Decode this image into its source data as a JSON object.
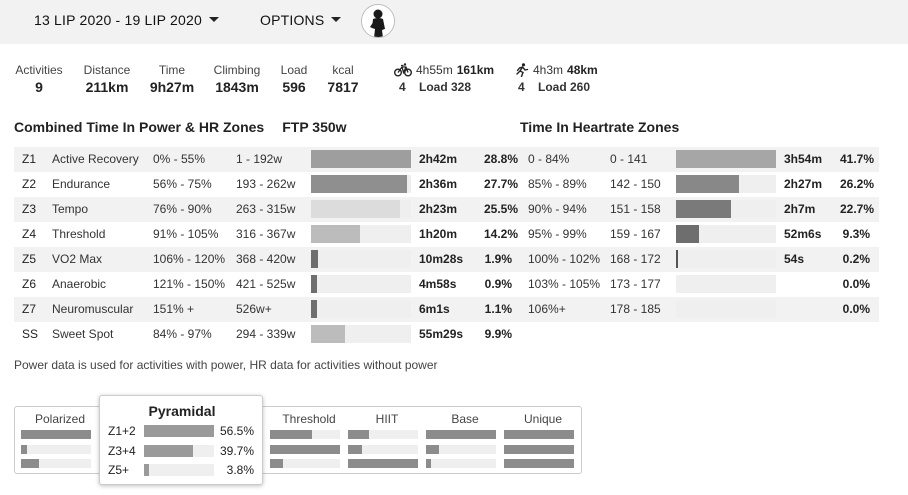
{
  "header": {
    "date_range": "13 LIP 2020 - 19 LIP 2020",
    "options": "OPTIONS",
    "avatar_icon": "athlete-avatar"
  },
  "stats": [
    {
      "label": "Activities",
      "value": "9"
    },
    {
      "label": "Distance",
      "value": "211km"
    },
    {
      "label": "Time",
      "value": "9h27m"
    },
    {
      "label": "Climbing",
      "value": "1843m"
    },
    {
      "label": "Load",
      "value": "596"
    },
    {
      "label": "kcal",
      "value": "7817"
    }
  ],
  "sports": [
    {
      "icon": "bike-icon",
      "duration": "4h55m",
      "distance": "161km",
      "count": "4",
      "load": "Load 328"
    },
    {
      "icon": "run-icon",
      "duration": "4h3m",
      "distance": "48km",
      "count": "4",
      "load": "Load 260"
    }
  ],
  "power_section": {
    "title": "Combined Time In Power & HR Zones",
    "ftp": "FTP 350w"
  },
  "hr_section": {
    "title": "Time In Heartrate Zones"
  },
  "zones": [
    {
      "id": "Z1",
      "name": "Active Recovery",
      "pct": "0% - 55%",
      "watts": "1 - 192w",
      "time": "2h42m",
      "perc": "28.8%",
      "fill": 1.0,
      "color": "#9e9e9e",
      "hr_pct": "0 - 84%",
      "hr_bpm": "0 - 141",
      "hr_time": "3h54m",
      "hr_perc": "41.7%",
      "hr_fill": 1.0,
      "hr_color": "#a6a6a6"
    },
    {
      "id": "Z2",
      "name": "Endurance",
      "pct": "56% - 75%",
      "watts": "193 - 262w",
      "time": "2h36m",
      "perc": "27.7%",
      "fill": 0.96,
      "color": "#8f8f8f",
      "hr_pct": "85% - 89%",
      "hr_bpm": "142 - 150",
      "hr_time": "2h27m",
      "hr_perc": "26.2%",
      "hr_fill": 0.63,
      "hr_color": "#888888"
    },
    {
      "id": "Z3",
      "name": "Tempo",
      "pct": "76% - 90%",
      "watts": "263 - 315w",
      "time": "2h23m",
      "perc": "25.5%",
      "fill": 0.89,
      "color": "#dcdcdc",
      "hr_pct": "90% - 94%",
      "hr_bpm": "151 - 158",
      "hr_time": "2h7m",
      "hr_perc": "22.7%",
      "hr_fill": 0.55,
      "hr_color": "#7a7a7a"
    },
    {
      "id": "Z4",
      "name": "Threshold",
      "pct": "91% - 105%",
      "watts": "316 - 367w",
      "time": "1h20m",
      "perc": "14.2%",
      "fill": 0.49,
      "color": "#bcbcbc",
      "hr_pct": "95% - 99%",
      "hr_bpm": "159 - 167",
      "hr_time": "52m6s",
      "hr_perc": "9.3%",
      "hr_fill": 0.23,
      "hr_color": "#6e6e6e"
    },
    {
      "id": "Z5",
      "name": "VO2 Max",
      "pct": "106% - 120%",
      "watts": "368 - 420w",
      "time": "10m28s",
      "perc": "1.9%",
      "fill": 0.07,
      "color": "#6e6e6e",
      "hr_pct": "100% - 102%",
      "hr_bpm": "168 - 172",
      "hr_time": "54s",
      "hr_perc": "0.2%",
      "hr_fill": 0.01,
      "hr_color": "#555555"
    },
    {
      "id": "Z6",
      "name": "Anaerobic",
      "pct": "121% - 150%",
      "watts": "421 - 525w",
      "time": "4m58s",
      "perc": "0.9%",
      "fill": 0.03,
      "color": "#6e6e6e",
      "hr_pct": "103% - 105%",
      "hr_bpm": "173 - 177",
      "hr_time": "",
      "hr_perc": "0.0%",
      "hr_fill": 0.0,
      "hr_color": "#555555"
    },
    {
      "id": "Z7",
      "name": "Neuromuscular",
      "pct": "151% +",
      "watts": "526w+",
      "time": "6m1s",
      "perc": "1.1%",
      "fill": 0.04,
      "color": "#6e6e6e",
      "hr_pct": "106%+",
      "hr_bpm": "178 - 185",
      "hr_time": "",
      "hr_perc": "0.0%",
      "hr_fill": 0.0,
      "hr_color": "#555555"
    },
    {
      "id": "SS",
      "name": "Sweet Spot",
      "pct": "84% - 97%",
      "watts": "294 - 339w",
      "time": "55m29s",
      "perc": "9.9%",
      "fill": 0.34,
      "color": "#bcbcbc"
    }
  ],
  "note": "Power data is used for activities with power, HR data for activities without power",
  "distribution": {
    "models": [
      {
        "name": "Polarized",
        "bars": [
          1.0,
          0.08,
          0.25
        ]
      },
      {
        "name": "Threshold",
        "bars": [
          0.6,
          1.0,
          0.18
        ]
      },
      {
        "name": "HIIT",
        "bars": [
          0.3,
          0.2,
          1.0
        ]
      },
      {
        "name": "Base",
        "bars": [
          1.0,
          0.18,
          0.06
        ]
      },
      {
        "name": "Unique",
        "bars": [
          1.0,
          1.0,
          1.0
        ]
      }
    ],
    "pyramidal": {
      "name": "Pyramidal",
      "rows": [
        {
          "label": "Z1+2",
          "value": "56.5%",
          "fill": 1.0
        },
        {
          "label": "Z3+4",
          "value": "39.7%",
          "fill": 0.7
        },
        {
          "label": "Z5+",
          "value": "3.8%",
          "fill": 0.07
        }
      ]
    }
  }
}
